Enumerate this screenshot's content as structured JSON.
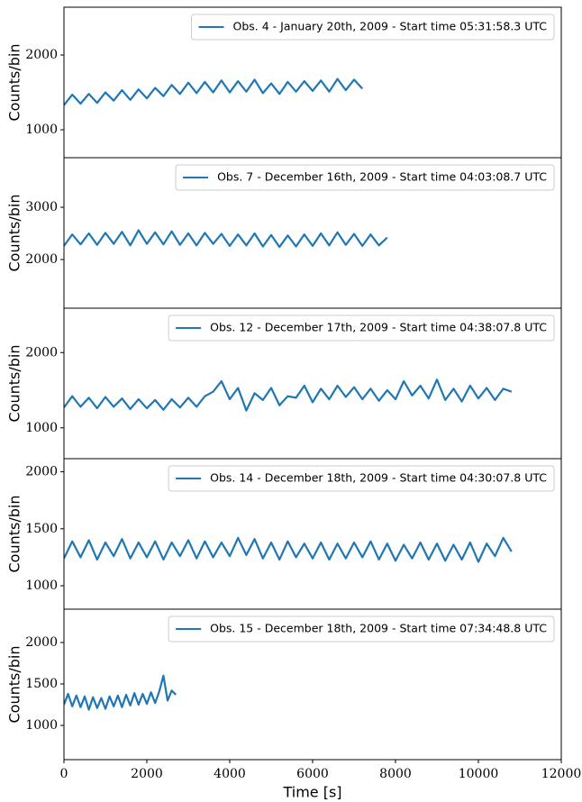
{
  "chart_data": [
    {
      "type": "line",
      "ylabel": "Counts/bin",
      "legend_loc": "upper right",
      "x": [
        0,
        200,
        400,
        600,
        800,
        1000,
        1200,
        1400,
        1600,
        1800,
        2000,
        2200,
        2400,
        2600,
        2800,
        3000,
        3200,
        3400,
        3600,
        3800,
        4000,
        4200,
        4400,
        4600,
        4800,
        5000,
        5200,
        5400,
        5600,
        5800,
        6000,
        6200,
        6400,
        6600,
        6800,
        7000,
        7200
      ],
      "series": [
        {
          "name": "Obs. 4 - January 20th, 2009 - Start time 05:31:58.3 UTC",
          "color": "#1f77b4",
          "values": [
            1330,
            1470,
            1350,
            1480,
            1360,
            1500,
            1390,
            1530,
            1400,
            1540,
            1420,
            1560,
            1450,
            1600,
            1480,
            1630,
            1490,
            1640,
            1500,
            1660,
            1500,
            1650,
            1510,
            1670,
            1490,
            1620,
            1480,
            1640,
            1510,
            1650,
            1520,
            1660,
            1510,
            1680,
            1530,
            1670,
            1550
          ]
        }
      ],
      "xlim": [
        0,
        12000
      ],
      "ylim": [
        627,
        2639
      ],
      "yticks": [
        1000,
        2000
      ]
    },
    {
      "type": "line",
      "ylabel": "Counts/bin",
      "legend_loc": "upper right",
      "x": [
        0,
        200,
        400,
        600,
        800,
        1000,
        1200,
        1400,
        1600,
        1800,
        2000,
        2200,
        2400,
        2600,
        2800,
        3000,
        3200,
        3400,
        3600,
        3800,
        4000,
        4200,
        4400,
        4600,
        4800,
        5000,
        5200,
        5400,
        5600,
        5800,
        6000,
        6200,
        6400,
        6600,
        6800,
        7000,
        7200,
        7400,
        7600,
        7800
      ],
      "series": [
        {
          "name": "Obs. 7 - December 16th, 2009 - Start time 04:03:08.7 UTC",
          "color": "#1f77b4",
          "values": [
            2260,
            2480,
            2290,
            2500,
            2280,
            2510,
            2300,
            2530,
            2270,
            2560,
            2300,
            2520,
            2290,
            2540,
            2280,
            2500,
            2270,
            2510,
            2300,
            2490,
            2260,
            2480,
            2270,
            2500,
            2250,
            2470,
            2240,
            2460,
            2250,
            2480,
            2260,
            2500,
            2270,
            2520,
            2280,
            2490,
            2260,
            2480,
            2270,
            2420
          ]
        }
      ],
      "xlim": [
        0,
        12000
      ],
      "ylim": [
        1069,
        3948
      ],
      "yticks": [
        2000,
        3000
      ]
    },
    {
      "type": "line",
      "ylabel": "Counts/bin",
      "legend_loc": "upper right",
      "x": [
        0,
        200,
        400,
        600,
        800,
        1000,
        1200,
        1400,
        1600,
        1800,
        2000,
        2200,
        2400,
        2600,
        2800,
        3000,
        3200,
        3400,
        3600,
        3800,
        4000,
        4200,
        4400,
        4600,
        4800,
        5000,
        5200,
        5400,
        5600,
        5800,
        6000,
        6200,
        6400,
        6600,
        6800,
        7000,
        7200,
        7400,
        7600,
        7800,
        8000,
        8200,
        8400,
        8600,
        8800,
        9000,
        9200,
        9400,
        9600,
        9800,
        10000,
        10200,
        10400,
        10600,
        10800
      ],
      "series": [
        {
          "name": "Obs. 12 - December 17th, 2009 - Start time 04:38:07.8 UTC",
          "color": "#1f77b4",
          "values": [
            1270,
            1420,
            1280,
            1400,
            1260,
            1410,
            1280,
            1390,
            1250,
            1380,
            1260,
            1370,
            1240,
            1380,
            1270,
            1400,
            1280,
            1420,
            1480,
            1620,
            1380,
            1530,
            1230,
            1460,
            1370,
            1530,
            1300,
            1420,
            1400,
            1560,
            1340,
            1520,
            1380,
            1560,
            1410,
            1540,
            1380,
            1520,
            1360,
            1500,
            1380,
            1620,
            1430,
            1560,
            1390,
            1640,
            1370,
            1520,
            1350,
            1560,
            1390,
            1530,
            1370,
            1520,
            1480
          ]
        }
      ],
      "xlim": [
        0,
        12000
      ],
      "ylim": [
        590,
        2590
      ],
      "yticks": [
        1000,
        2000
      ]
    },
    {
      "type": "line",
      "ylabel": "Counts/bin",
      "legend_loc": "upper right",
      "x": [
        0,
        200,
        400,
        600,
        800,
        1000,
        1200,
        1400,
        1600,
        1800,
        2000,
        2200,
        2400,
        2600,
        2800,
        3000,
        3200,
        3400,
        3600,
        3800,
        4000,
        4200,
        4400,
        4600,
        4800,
        5000,
        5200,
        5400,
        5600,
        5800,
        6000,
        6200,
        6400,
        6600,
        6800,
        7000,
        7200,
        7400,
        7600,
        7800,
        8000,
        8200,
        8400,
        8600,
        8800,
        9000,
        9200,
        9400,
        9600,
        9800,
        10000,
        10200,
        10400,
        10600,
        10800
      ],
      "series": [
        {
          "name": "Obs. 14 - December 18th, 2009 - Start time 04:30:07.8 UTC",
          "color": "#1f77b4",
          "values": [
            1240,
            1390,
            1250,
            1400,
            1230,
            1380,
            1260,
            1410,
            1240,
            1380,
            1250,
            1390,
            1230,
            1380,
            1260,
            1400,
            1240,
            1390,
            1250,
            1380,
            1260,
            1420,
            1270,
            1410,
            1240,
            1380,
            1230,
            1390,
            1250,
            1370,
            1240,
            1380,
            1230,
            1370,
            1240,
            1380,
            1250,
            1390,
            1230,
            1370,
            1220,
            1360,
            1240,
            1380,
            1230,
            1370,
            1220,
            1360,
            1230,
            1380,
            1210,
            1370,
            1260,
            1420,
            1300
          ]
        }
      ],
      "xlim": [
        0,
        12000
      ],
      "ylim": [
        795,
        2115
      ],
      "yticks": [
        1000,
        1500,
        2000
      ]
    },
    {
      "type": "line",
      "ylabel": "Counts/bin",
      "xlabel": "Time [s]",
      "legend_loc": "upper right",
      "x": [
        0,
        100,
        200,
        300,
        400,
        500,
        600,
        700,
        800,
        900,
        1000,
        1100,
        1200,
        1300,
        1400,
        1500,
        1600,
        1700,
        1800,
        1900,
        2000,
        2100,
        2200,
        2300,
        2400,
        2500,
        2600,
        2700
      ],
      "series": [
        {
          "name": "Obs. 15 - December 18th, 2009 - Start time 07:34:48.8 UTC",
          "color": "#1f77b4",
          "values": [
            1250,
            1380,
            1230,
            1360,
            1220,
            1350,
            1190,
            1340,
            1210,
            1330,
            1200,
            1350,
            1230,
            1360,
            1220,
            1370,
            1240,
            1390,
            1250,
            1380,
            1260,
            1400,
            1270,
            1410,
            1600,
            1300,
            1420,
            1370
          ]
        }
      ],
      "xlim": [
        0,
        12000
      ],
      "ylim": [
        587,
        2402
      ],
      "yticks": [
        1000,
        1500,
        2000,
        2500
      ],
      "xticks": [
        0,
        2000,
        4000,
        6000,
        8000,
        10000,
        12000
      ]
    }
  ]
}
